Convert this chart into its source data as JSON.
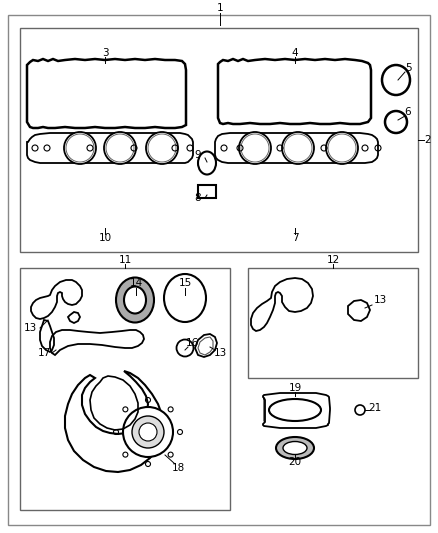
{
  "background": "#ffffff",
  "line_color": "#000000",
  "label_fontsize": 7.5,
  "figsize": [
    4.38,
    5.33
  ],
  "dpi": 100
}
